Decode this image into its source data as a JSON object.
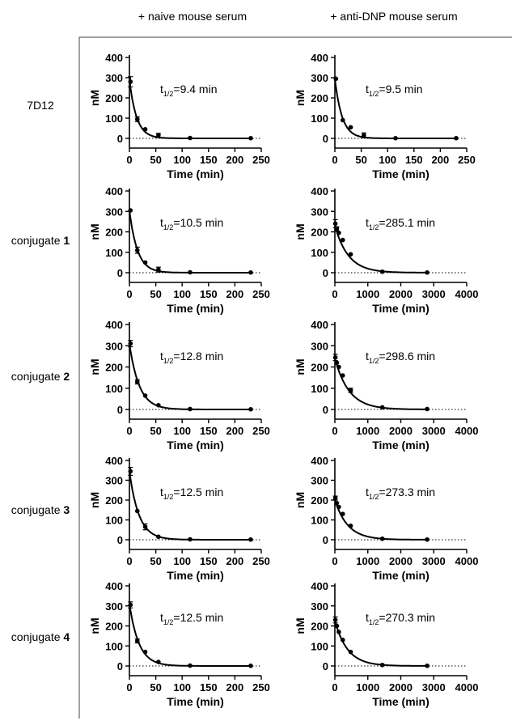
{
  "columns": [
    "+ naive mouse serum",
    "+ anti-DNP mouse serum"
  ],
  "rows": [
    {
      "label": "7D12",
      "bold": ""
    },
    {
      "label": "conjugate ",
      "bold": "1"
    },
    {
      "label": "conjugate ",
      "bold": "2"
    },
    {
      "label": "conjugate ",
      "bold": "3"
    },
    {
      "label": "conjugate ",
      "bold": "4"
    }
  ],
  "chart_data": [
    {
      "type": "scatter",
      "row": 0,
      "col": 0,
      "xlabel": "Time (min)",
      "ylabel": "nM",
      "xlim": [
        0,
        250
      ],
      "ylim": [
        0,
        400
      ],
      "xticks": [
        0,
        50,
        100,
        150,
        200,
        250
      ],
      "yticks": [
        0,
        100,
        200,
        300,
        400
      ],
      "annotation": {
        "prefix": "t",
        "sub": "1/2",
        "value": "=9.4 min"
      },
      "fit": {
        "y0": 290,
        "half_life": 9.4
      },
      "points": [
        {
          "x": 2,
          "y": 280,
          "err": 25
        },
        {
          "x": 15,
          "y": 95,
          "err": 12
        },
        {
          "x": 30,
          "y": 45,
          "err": 0
        },
        {
          "x": 55,
          "y": 15,
          "err": 10
        },
        {
          "x": 115,
          "y": 2,
          "err": 0
        },
        {
          "x": 230,
          "y": 1,
          "err": 0
        }
      ]
    },
    {
      "type": "scatter",
      "row": 0,
      "col": 1,
      "xlabel": "Time (min)",
      "ylabel": "nM",
      "xlim": [
        0,
        250
      ],
      "ylim": [
        0,
        400
      ],
      "xticks": [
        0,
        50,
        100,
        150,
        200,
        250
      ],
      "yticks": [
        0,
        100,
        200,
        300,
        400
      ],
      "annotation": {
        "prefix": "t",
        "sub": "1/2",
        "value": "=9.5 min"
      },
      "fit": {
        "y0": 295,
        "half_life": 9.5
      },
      "points": [
        {
          "x": 2,
          "y": 295,
          "err": 0
        },
        {
          "x": 15,
          "y": 90,
          "err": 0
        },
        {
          "x": 30,
          "y": 55,
          "err": 0
        },
        {
          "x": 55,
          "y": 15,
          "err": 12
        },
        {
          "x": 115,
          "y": 1,
          "err": 0
        },
        {
          "x": 230,
          "y": 1,
          "err": 0
        }
      ]
    },
    {
      "type": "scatter",
      "row": 1,
      "col": 0,
      "xlabel": "Time (min)",
      "ylabel": "nM",
      "xlim": [
        0,
        250
      ],
      "ylim": [
        0,
        400
      ],
      "xticks": [
        0,
        50,
        100,
        150,
        200,
        250
      ],
      "yticks": [
        0,
        100,
        200,
        300,
        400
      ],
      "annotation": {
        "prefix": "t",
        "sub": "1/2",
        "value": "=10.5 min"
      },
      "fit": {
        "y0": 305,
        "half_life": 10.5
      },
      "points": [
        {
          "x": 2,
          "y": 305,
          "err": 0
        },
        {
          "x": 15,
          "y": 110,
          "err": 15
        },
        {
          "x": 30,
          "y": 50,
          "err": 0
        },
        {
          "x": 55,
          "y": 15,
          "err": 12
        },
        {
          "x": 115,
          "y": 2,
          "err": 0
        },
        {
          "x": 230,
          "y": 1,
          "err": 0
        }
      ]
    },
    {
      "type": "scatter",
      "row": 1,
      "col": 1,
      "xlabel": "Time (min)",
      "ylabel": "nM",
      "xlim": [
        0,
        4000
      ],
      "ylim": [
        0,
        400
      ],
      "xticks": [
        0,
        1000,
        2000,
        3000,
        4000
      ],
      "yticks": [
        0,
        100,
        200,
        300,
        400
      ],
      "annotation": {
        "prefix": "t",
        "sub": "1/2",
        "value": "=285.1 min"
      },
      "fit": {
        "y0": 230,
        "half_life": 285.1
      },
      "points": [
        {
          "x": 15,
          "y": 240,
          "err": 20
        },
        {
          "x": 60,
          "y": 215,
          "err": 10
        },
        {
          "x": 120,
          "y": 195,
          "err": 0
        },
        {
          "x": 240,
          "y": 160,
          "err": 0
        },
        {
          "x": 480,
          "y": 90,
          "err": 0
        },
        {
          "x": 1440,
          "y": 5,
          "err": 0
        },
        {
          "x": 2800,
          "y": 1,
          "err": 0
        }
      ]
    },
    {
      "type": "scatter",
      "row": 2,
      "col": 0,
      "xlabel": "Time (min)",
      "ylabel": "nM",
      "xlim": [
        0,
        250
      ],
      "ylim": [
        0,
        400
      ],
      "xticks": [
        0,
        50,
        100,
        150,
        200,
        250
      ],
      "yticks": [
        0,
        100,
        200,
        300,
        400
      ],
      "annotation": {
        "prefix": "t",
        "sub": "1/2",
        "value": "=12.8 min"
      },
      "fit": {
        "y0": 310,
        "half_life": 12.8
      },
      "points": [
        {
          "x": 2,
          "y": 310,
          "err": 15
        },
        {
          "x": 15,
          "y": 130,
          "err": 10
        },
        {
          "x": 30,
          "y": 65,
          "err": 0
        },
        {
          "x": 55,
          "y": 20,
          "err": 0
        },
        {
          "x": 115,
          "y": 2,
          "err": 0
        },
        {
          "x": 230,
          "y": 1,
          "err": 0
        }
      ]
    },
    {
      "type": "scatter",
      "row": 2,
      "col": 1,
      "xlabel": "Time (min)",
      "ylabel": "nM",
      "xlim": [
        0,
        4000
      ],
      "ylim": [
        0,
        400
      ],
      "xticks": [
        0,
        1000,
        2000,
        3000,
        4000
      ],
      "yticks": [
        0,
        100,
        200,
        300,
        400
      ],
      "annotation": {
        "prefix": "t",
        "sub": "1/2",
        "value": "=298.6 min"
      },
      "fit": {
        "y0": 240,
        "half_life": 298.6
      },
      "points": [
        {
          "x": 15,
          "y": 245,
          "err": 15
        },
        {
          "x": 60,
          "y": 220,
          "err": 0
        },
        {
          "x": 120,
          "y": 200,
          "err": 0
        },
        {
          "x": 240,
          "y": 160,
          "err": 0
        },
        {
          "x": 480,
          "y": 90,
          "err": 10
        },
        {
          "x": 1440,
          "y": 10,
          "err": 0
        },
        {
          "x": 2800,
          "y": 2,
          "err": 0
        }
      ]
    },
    {
      "type": "scatter",
      "row": 3,
      "col": 0,
      "xlabel": "Time (min)",
      "ylabel": "nM",
      "xlim": [
        0,
        250
      ],
      "ylim": [
        0,
        400
      ],
      "xticks": [
        0,
        50,
        100,
        150,
        200,
        250
      ],
      "yticks": [
        0,
        100,
        200,
        300,
        400
      ],
      "annotation": {
        "prefix": "t",
        "sub": "1/2",
        "value": "=12.5 min"
      },
      "fit": {
        "y0": 345,
        "half_life": 12.5
      },
      "points": [
        {
          "x": 2,
          "y": 345,
          "err": 20
        },
        {
          "x": 15,
          "y": 145,
          "err": 0
        },
        {
          "x": 30,
          "y": 65,
          "err": 15
        },
        {
          "x": 55,
          "y": 15,
          "err": 0
        },
        {
          "x": 115,
          "y": 2,
          "err": 0
        },
        {
          "x": 230,
          "y": 1,
          "err": 0
        }
      ]
    },
    {
      "type": "scatter",
      "row": 3,
      "col": 1,
      "xlabel": "Time (min)",
      "ylabel": "nM",
      "xlim": [
        0,
        4000
      ],
      "ylim": [
        0,
        400
      ],
      "xticks": [
        0,
        1000,
        2000,
        3000,
        4000
      ],
      "yticks": [
        0,
        100,
        200,
        300,
        400
      ],
      "annotation": {
        "prefix": "t",
        "sub": "1/2",
        "value": "=273.3 min"
      },
      "fit": {
        "y0": 200,
        "half_life": 273.3
      },
      "points": [
        {
          "x": 15,
          "y": 210,
          "err": 10
        },
        {
          "x": 60,
          "y": 185,
          "err": 0
        },
        {
          "x": 120,
          "y": 165,
          "err": 0
        },
        {
          "x": 240,
          "y": 130,
          "err": 0
        },
        {
          "x": 480,
          "y": 70,
          "err": 0
        },
        {
          "x": 1440,
          "y": 5,
          "err": 0
        },
        {
          "x": 2800,
          "y": 1,
          "err": 0
        }
      ]
    },
    {
      "type": "scatter",
      "row": 4,
      "col": 0,
      "xlabel": "Time (min)",
      "ylabel": "nM",
      "xlim": [
        0,
        250
      ],
      "ylim": [
        0,
        400
      ],
      "xticks": [
        0,
        50,
        100,
        150,
        200,
        250
      ],
      "yticks": [
        0,
        100,
        200,
        300,
        400
      ],
      "annotation": {
        "prefix": "t",
        "sub": "1/2",
        "value": "=12.5 min"
      },
      "fit": {
        "y0": 310,
        "half_life": 12.5
      },
      "points": [
        {
          "x": 2,
          "y": 305,
          "err": 15
        },
        {
          "x": 15,
          "y": 125,
          "err": 10
        },
        {
          "x": 30,
          "y": 70,
          "err": 0
        },
        {
          "x": 55,
          "y": 20,
          "err": 0
        },
        {
          "x": 115,
          "y": 2,
          "err": 0
        },
        {
          "x": 230,
          "y": 1,
          "err": 0
        }
      ]
    },
    {
      "type": "scatter",
      "row": 4,
      "col": 1,
      "xlabel": "Time (min)",
      "ylabel": "nM",
      "xlim": [
        0,
        4000
      ],
      "ylim": [
        0,
        400
      ],
      "xticks": [
        0,
        1000,
        2000,
        3000,
        4000
      ],
      "yticks": [
        0,
        100,
        200,
        300,
        400
      ],
      "annotation": {
        "prefix": "t",
        "sub": "1/2",
        "value": "=270.3 min"
      },
      "fit": {
        "y0": 225,
        "half_life": 270.3
      },
      "points": [
        {
          "x": 15,
          "y": 230,
          "err": 15
        },
        {
          "x": 60,
          "y": 200,
          "err": 0
        },
        {
          "x": 120,
          "y": 170,
          "err": 0
        },
        {
          "x": 240,
          "y": 130,
          "err": 0
        },
        {
          "x": 480,
          "y": 70,
          "err": 0
        },
        {
          "x": 1440,
          "y": 5,
          "err": 0
        },
        {
          "x": 2800,
          "y": 1,
          "err": 0
        }
      ]
    }
  ]
}
